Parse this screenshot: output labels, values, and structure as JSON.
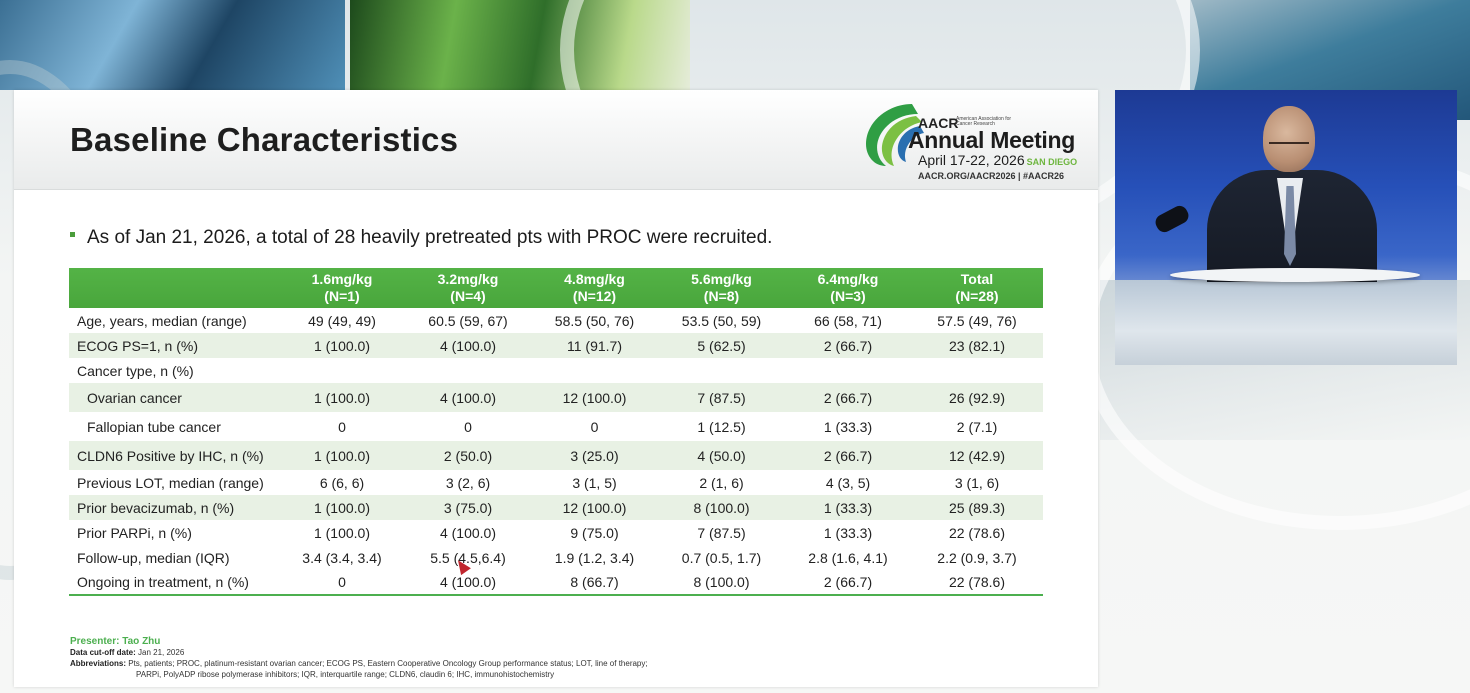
{
  "slide": {
    "title": "Baseline Characteristics",
    "bullet": "As of Jan 21, 2026, a total of 28 heavily pretreated pts with PROC were recruited."
  },
  "logo": {
    "name": "AACR",
    "org": "American Association for Cancer Research",
    "meeting": "Annual Meeting",
    "dates": "April 17-22, 2026",
    "city": "SAN DIEGO",
    "url": "AACR.ORG/AACR2026 | #AACR26"
  },
  "table": {
    "headers": [
      {
        "dose": "",
        "n": ""
      },
      {
        "dose": "1.6mg/kg",
        "n": "(N=1)"
      },
      {
        "dose": "3.2mg/kg",
        "n": "(N=4)"
      },
      {
        "dose": "4.8mg/kg",
        "n": "(N=12)"
      },
      {
        "dose": "5.6mg/kg",
        "n": "(N=8)"
      },
      {
        "dose": "6.4mg/kg",
        "n": "(N=3)"
      },
      {
        "dose": "Total",
        "n": "(N=28)"
      }
    ],
    "rows": [
      {
        "label": "Age, years, median (range)",
        "values": [
          "49 (49, 49)",
          "60.5 (59, 67)",
          "58.5 (50, 76)",
          "53.5 (50, 59)",
          "66 (58, 71)",
          "57.5 (49, 76)"
        ]
      },
      {
        "label": "ECOG PS=1, n (%)",
        "values": [
          "1 (100.0)",
          "4 (100.0)",
          "11 (91.7)",
          "5 (62.5)",
          "2 (66.7)",
          "23 (82.1)"
        ]
      },
      {
        "label": "Cancer type, n (%)",
        "values": [
          "",
          "",
          "",
          "",
          "",
          ""
        ]
      },
      {
        "label": "Ovarian cancer",
        "values": [
          "1 (100.0)",
          "4 (100.0)",
          "12 (100.0)",
          "7 (87.5)",
          "2 (66.7)",
          "26 (92.9)"
        ]
      },
      {
        "label": "Fallopian tube cancer",
        "values": [
          "0",
          "0",
          "0",
          "1 (12.5)",
          "1 (33.3)",
          "2 (7.1)"
        ]
      },
      {
        "label": "CLDN6 Positive by IHC, n (%)",
        "values": [
          "1 (100.0)",
          "2 (50.0)",
          "3 (25.0)",
          "4 (50.0)",
          "2 (66.7)",
          "12 (42.9)"
        ]
      },
      {
        "label": "Previous LOT, median (range)",
        "values": [
          "6 (6, 6)",
          "3 (2, 6)",
          "3 (1, 5)",
          "2 (1, 6)",
          "4 (3, 5)",
          "3 (1, 6)"
        ]
      },
      {
        "label": "Prior bevacizumab, n (%)",
        "values": [
          "1 (100.0)",
          "3 (75.0)",
          "12 (100.0)",
          "8 (100.0)",
          "1 (33.3)",
          "25 (89.3)"
        ]
      },
      {
        "label": "Prior PARPi, n (%)",
        "values": [
          "1 (100.0)",
          "4 (100.0)",
          "9 (75.0)",
          "7 (87.5)",
          "1 (33.3)",
          "22 (78.6)"
        ]
      },
      {
        "label": "Follow-up, median (IQR)",
        "values": [
          "3.4 (3.4, 3.4)",
          "5.5 (4.5,6.4)",
          "1.9 (1.2, 3.4)",
          "0.7 (0.5, 1.7)",
          "2.8 (1.6, 4.1)",
          "2.2 (0.9, 3.7)"
        ]
      },
      {
        "label": "Ongoing in treatment, n (%)",
        "values": [
          "0",
          "4 (100.0)",
          "8 (66.7)",
          "8 (100.0)",
          "2 (66.7)",
          "22 (78.6)"
        ]
      }
    ]
  },
  "footer": {
    "presenter_label": "Presenter:",
    "presenter_name": "Tao Zhu",
    "cutoff_label": "Data cut-off date:",
    "cutoff_value": "Jan 21, 2026",
    "abbr_label": "Abbreviations:",
    "abbr_line1": "Pts, patients; PROC, platinum-resistant ovarian cancer; ECOG PS, Eastern Cooperative Oncology Group performance status; LOT, line of therapy;",
    "abbr_line2": "PARPi, PolyADP ribose polymerase inhibitors; IQR, interquartile range; CLDN6, claudin 6; IHC, immunohistochemistry"
  },
  "colors": {
    "header_green": "#4caf4f",
    "alt_row": "#e8f1e4",
    "presenter_green": "#4caf4f",
    "video_bg": "#2650b8"
  },
  "icons": {
    "bullet": "square-bullet",
    "cursor": "pointer-arrow",
    "logo": "aacr-swirl"
  }
}
